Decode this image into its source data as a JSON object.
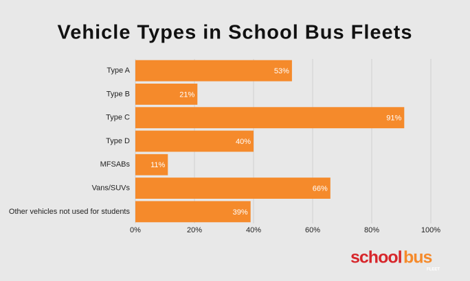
{
  "chart_data": {
    "type": "barh",
    "title": "Vehicle Types in School Bus Fleets",
    "categories": [
      "Type A",
      "Type B",
      "Type C",
      "Type D",
      "MFSABs",
      "Vans/SUVs",
      "Other vehicles not used for students"
    ],
    "values": [
      53,
      21,
      91,
      40,
      11,
      66,
      39
    ],
    "value_labels": [
      "53%",
      "21%",
      "91%",
      "40%",
      "11%",
      "66%",
      "39%"
    ],
    "color": "#f58a2b",
    "xlim": [
      0,
      100
    ],
    "xticks": [
      {
        "value": 0,
        "label": "0%"
      },
      {
        "value": 20,
        "label": "20%"
      },
      {
        "value": 40,
        "label": "40%"
      },
      {
        "value": 60,
        "label": "60%"
      },
      {
        "value": 80,
        "label": "80%"
      },
      {
        "value": 100,
        "label": "100%"
      }
    ],
    "grid": true
  },
  "logo": {
    "parts": [
      "school",
      "bus"
    ],
    "tagline": "FLEET"
  }
}
